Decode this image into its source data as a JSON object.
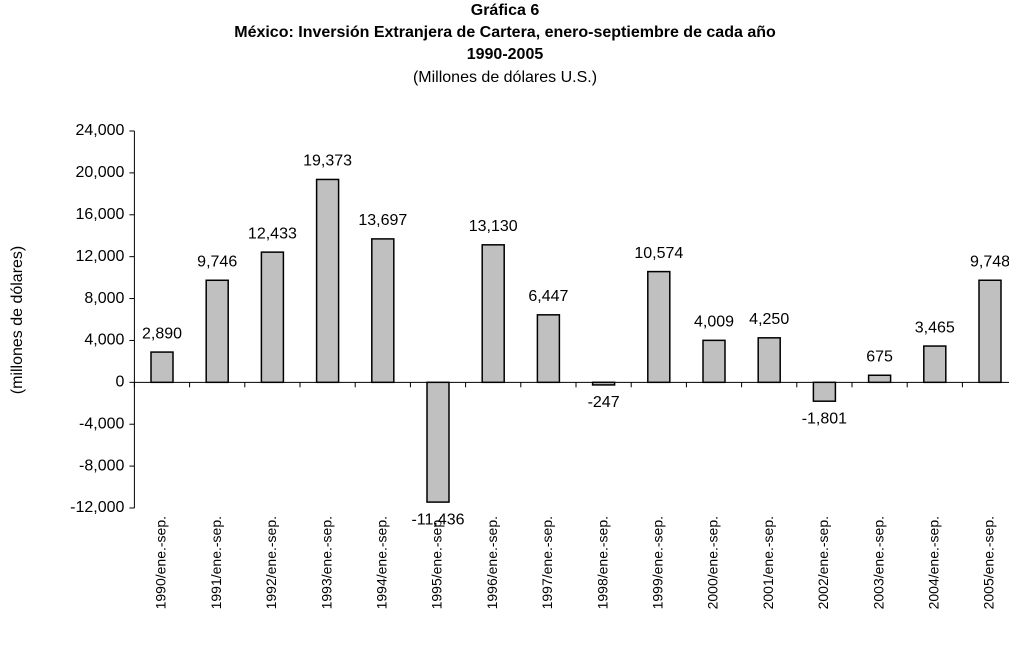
{
  "chart_data": {
    "type": "bar",
    "title": "Gráfica 6",
    "subtitle_lines": [
      "México: Inversión Extranjera de Cartera, enero-septiembre de cada año",
      "1990-2005"
    ],
    "subtitle": "(Millones de dólares U.S.)",
    "y_label": "(millones de dólares)",
    "categories": [
      "1990/ene.-sep.",
      "1991/ene.-sep.",
      "1992/ene.-sep.",
      "1993/ene.-sep.",
      "1994/ene.-sep.",
      "1995/ene.-sep.",
      "1996/ene.-sep.",
      "1997/ene.-sep.",
      "1998/ene.-sep.",
      "1999/ene.-sep.",
      "2000/ene.-sep.",
      "2001/ene.-sep.",
      "2002/ene.-sep.",
      "2003/ene.-sep.",
      "2004/ene.-sep.",
      "2005/ene.-sep."
    ],
    "values": [
      2890,
      9746,
      12433,
      19373,
      13697,
      -11436,
      13130,
      6447,
      -247,
      10574,
      4009,
      4250,
      -1801,
      675,
      3465,
      9748
    ],
    "value_labels": [
      "2,890",
      "9,746",
      "12,433",
      "19,373",
      "13,697",
      "-11,436",
      "13,130",
      "6,447",
      "-247",
      "10,574",
      "4,009",
      "4,250",
      "-1,801",
      "675",
      "3,465",
      "9,748"
    ],
    "color": "#c0c0c0",
    "ylim": [
      -12000,
      24000
    ],
    "yticks": [
      {
        "value": -12000,
        "label": "-12,000"
      },
      {
        "value": -8000,
        "label": "-8,000"
      },
      {
        "value": -4000,
        "label": "-4,000"
      },
      0,
      {
        "value": 4000,
        "label": "4,000"
      },
      {
        "value": 8000,
        "label": "8,000"
      },
      {
        "value": 12000,
        "label": "12,000"
      },
      {
        "value": 16000,
        "label": "16,000"
      },
      {
        "value": 20000,
        "label": "20,000"
      },
      {
        "value": 24000,
        "label": "24,000"
      }
    ],
    "grid": false
  }
}
